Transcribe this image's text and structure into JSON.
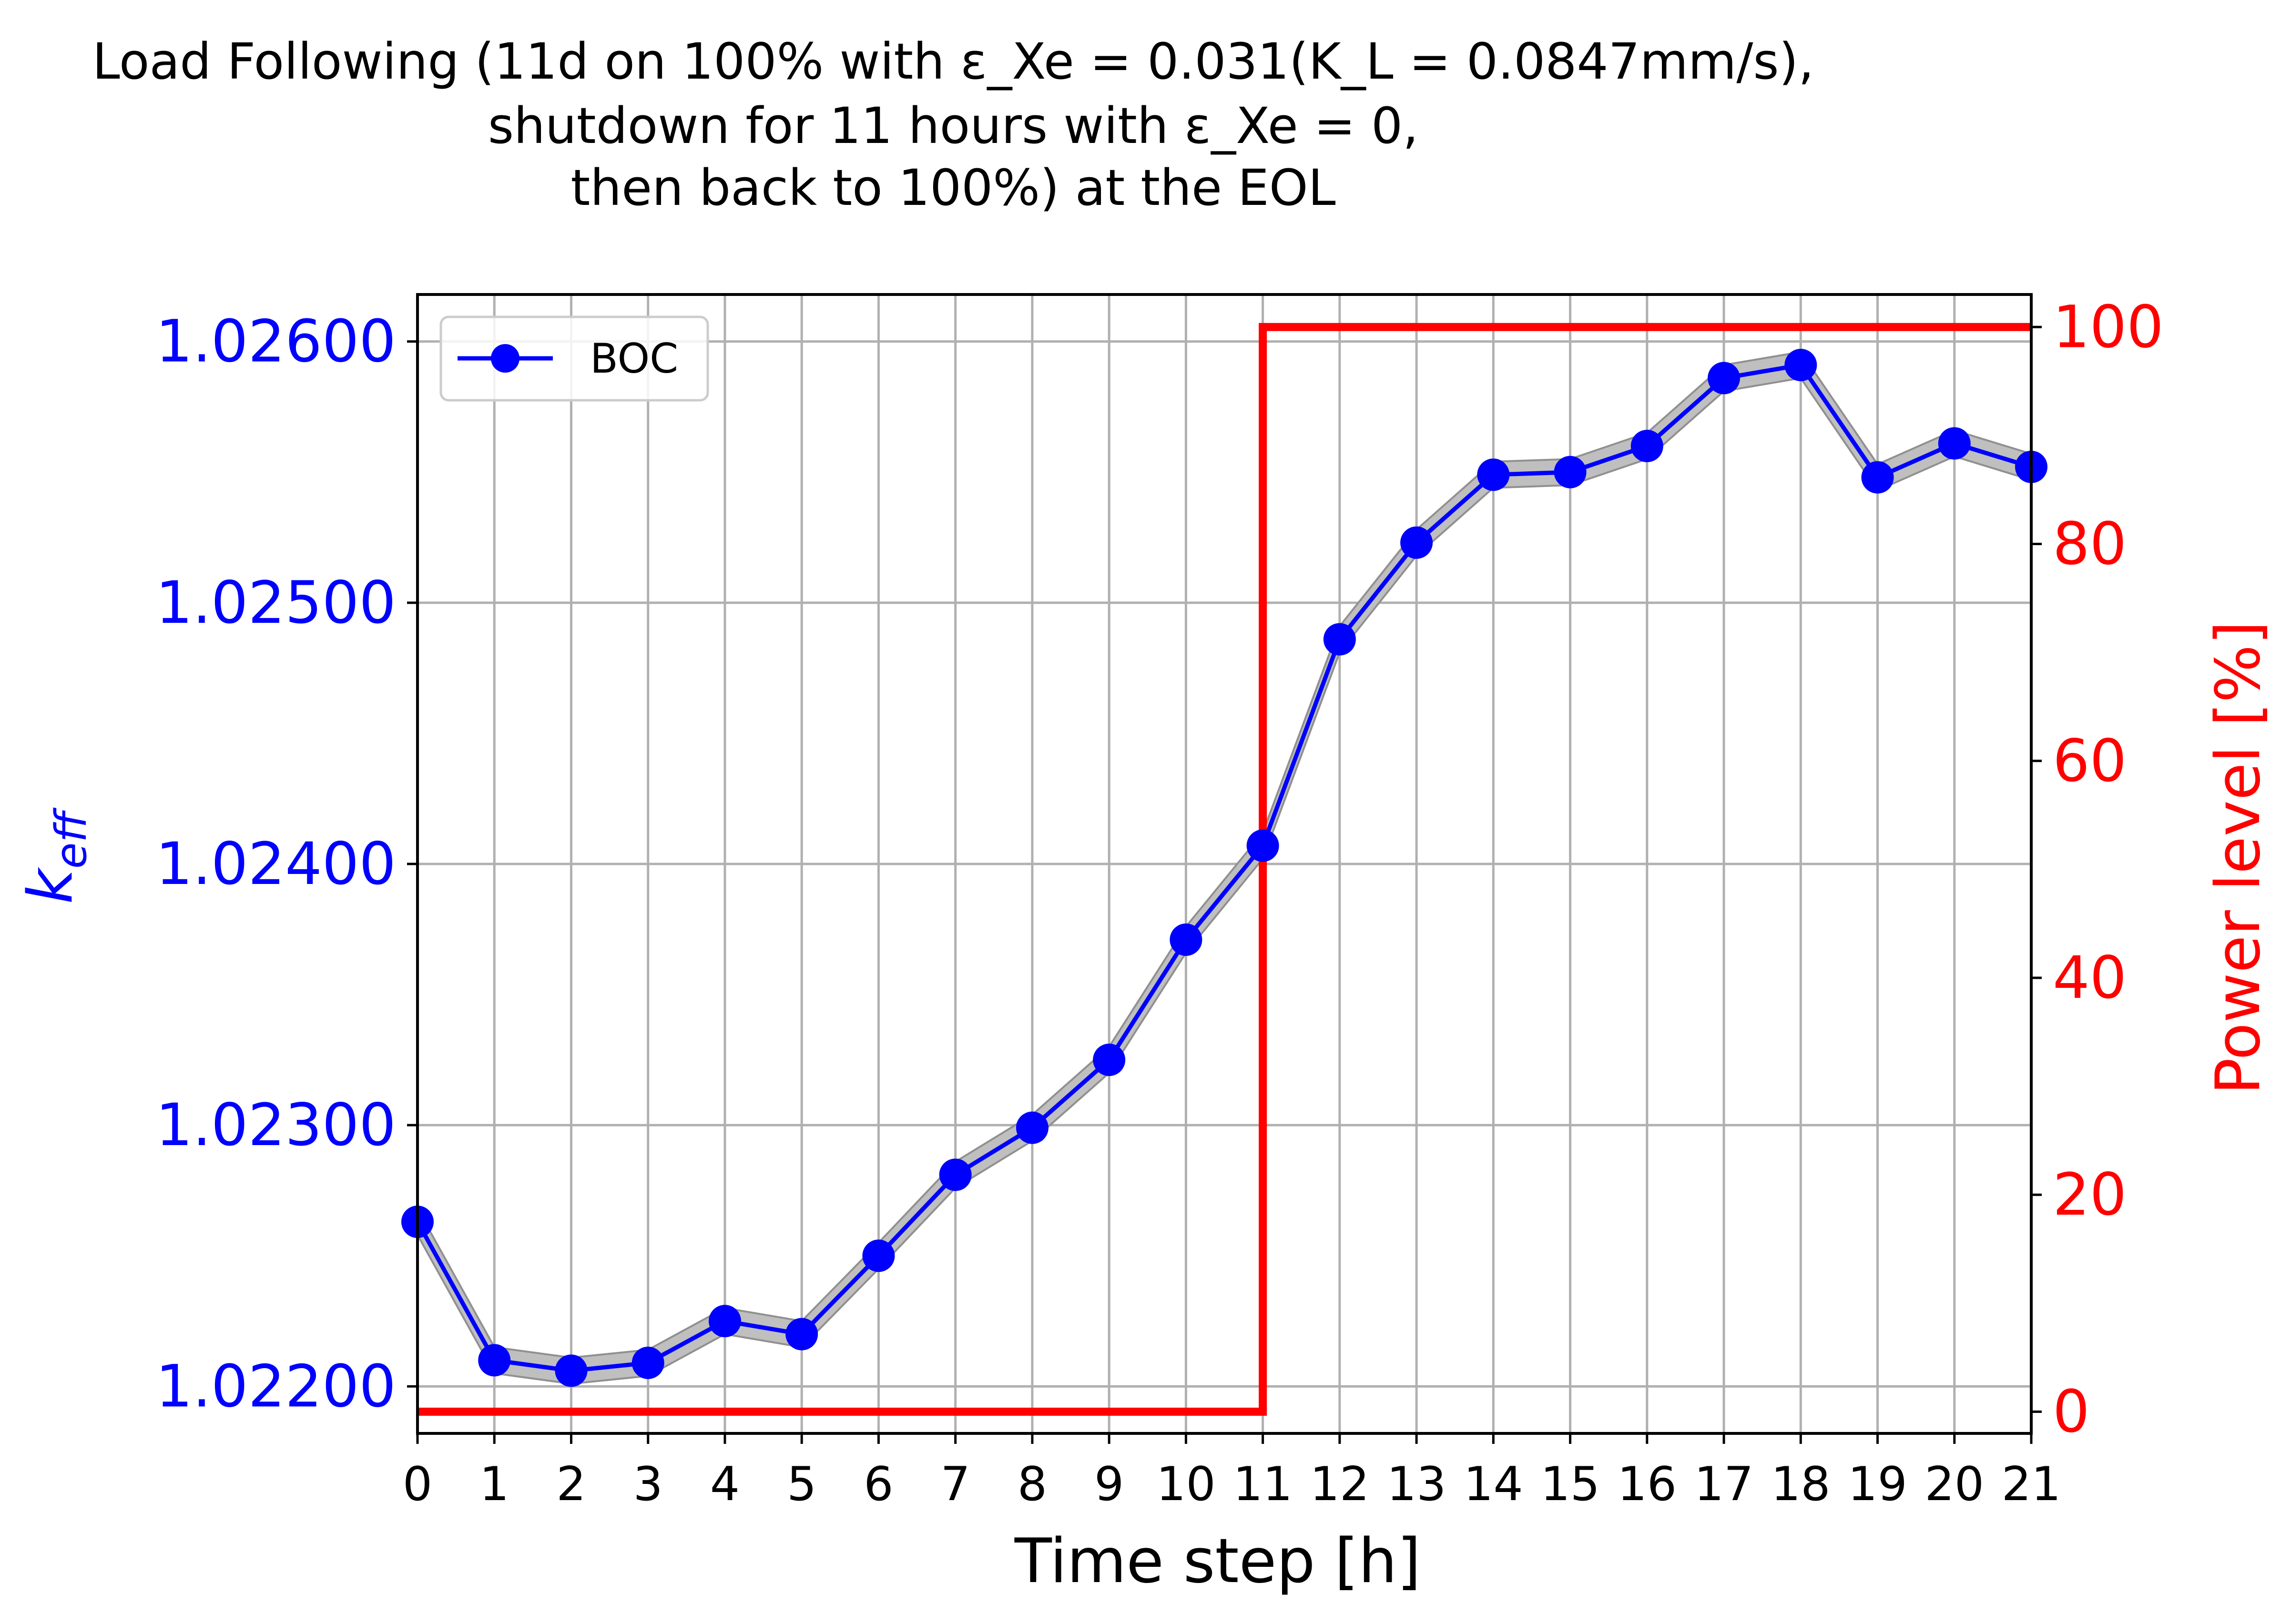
{
  "chart_data": {
    "type": "line",
    "title_lines": [
      "Load Following (11d on 100% with ε_Xe = 0.031(K_L = 0.0847mm/s),",
      "shutdown for 11 hours with ε_Xe = 0,",
      "then back to 100%) at the EOL"
    ],
    "xlabel": "Time step [h]",
    "ylabel_left": "k_eff",
    "ylabel_right": "Power level [%]",
    "x": [
      0,
      1,
      2,
      3,
      4,
      5,
      6,
      7,
      8,
      9,
      10,
      11,
      12,
      13,
      14,
      15,
      16,
      17,
      18,
      19,
      20,
      21
    ],
    "xlim": [
      0,
      21
    ],
    "ylim_left": [
      1.02182,
      1.02618
    ],
    "ylim_right": [
      -2,
      103
    ],
    "yticks_left": [
      "1.02200",
      "1.02300",
      "1.02400",
      "1.02500",
      "1.02600"
    ],
    "yticks_left_values": [
      1.022,
      1.023,
      1.024,
      1.025,
      1.026
    ],
    "yticks_right": [
      "0",
      "20",
      "40",
      "60",
      "80",
      "100"
    ],
    "yticks_right_values": [
      0,
      20,
      40,
      60,
      80,
      100
    ],
    "grid": true,
    "legend_position": "upper-left",
    "series": [
      {
        "name": "BOC",
        "axis": "left",
        "color": "#0000ff",
        "marker": "circle",
        "values": [
          1.02263,
          1.0221,
          1.02206,
          1.02209,
          1.02225,
          1.0222,
          1.0225,
          1.02281,
          1.02299,
          1.02325,
          1.02371,
          1.02407,
          1.02486,
          1.02523,
          1.02549,
          1.0255,
          1.0256,
          1.02586,
          1.02591,
          1.02548,
          1.02561,
          1.02552
        ],
        "uncertainty": 5e-05,
        "band_color": "#bfbfbf"
      },
      {
        "name": "",
        "axis": "right",
        "color": "#ff0000",
        "step": true,
        "values": [
          0,
          0,
          0,
          0,
          0,
          0,
          0,
          0,
          0,
          0,
          0,
          100,
          100,
          100,
          100,
          100,
          100,
          100,
          100,
          100,
          100,
          100
        ]
      }
    ]
  }
}
